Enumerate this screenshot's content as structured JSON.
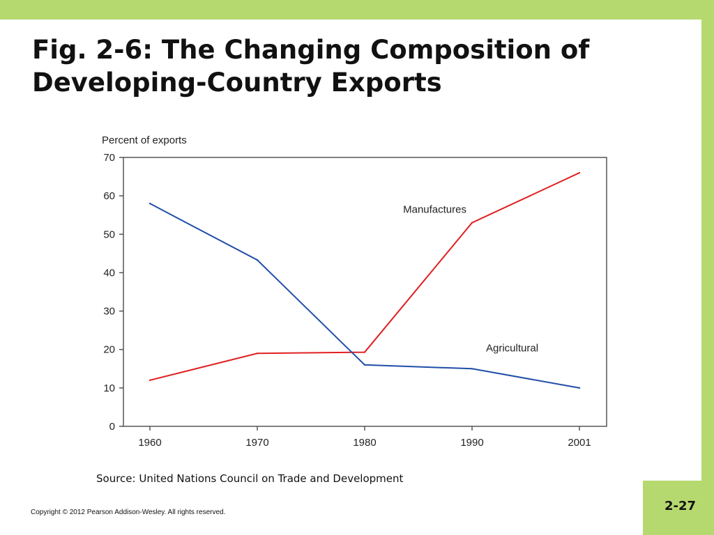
{
  "slide": {
    "title_line1": "Fig. 2-6: The Changing Composition of",
    "title_line2": "Developing-Country Exports",
    "source": "Source: United Nations Council on Trade and Development",
    "copyright": "Copyright © 2012 Pearson Addison-Wesley. All rights reserved.",
    "page_number": "2-27"
  },
  "colors": {
    "frame": "#b5d96e",
    "manufactures": "#e02020",
    "agricultural": "#1f4ea8",
    "axis": "#555555"
  },
  "chart_data": {
    "type": "line",
    "title": "",
    "ylabel": "Percent of exports",
    "xlabel": "",
    "x": [
      "1960",
      "1970",
      "1980",
      "1990",
      "2001"
    ],
    "ylim": [
      0,
      70
    ],
    "yticks": [
      0,
      10,
      20,
      30,
      40,
      50,
      60,
      70
    ],
    "grid": false,
    "series": [
      {
        "name": "Manufactures",
        "values": [
          12,
          19,
          19.3,
          53,
          66
        ],
        "color": "#e02020"
      },
      {
        "name": "Agricultural",
        "values": [
          58,
          43.3,
          16,
          15,
          10
        ],
        "color": "#1f4ea8"
      }
    ]
  }
}
